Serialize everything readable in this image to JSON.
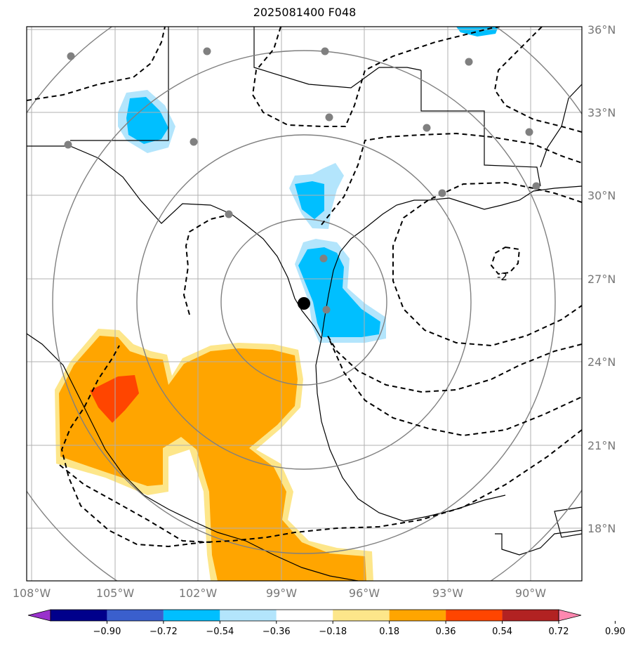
{
  "title": "2025081400 F048",
  "colors": {
    "frame": "#000000",
    "grid": "#aaaaaa",
    "range_rings": "#808080",
    "station_dot": "#808080",
    "center_dot": "#000000",
    "coast": "#000000",
    "contour_line": "#000000",
    "pos_0.18_0.36": "#fde68a",
    "pos_0.36_0.54": "#ffa500",
    "pos_0.54_0.72": "#ff4500",
    "neg_-0.36_-0.18": "#b3e5fc",
    "neg_-0.54_-0.36": "#00bfff"
  },
  "lat_labels": [
    "36°N",
    "33°N",
    "30°N",
    "27°N",
    "24°N",
    "21°N",
    "18°N"
  ],
  "lon_labels": [
    "108°W",
    "105°W",
    "102°W",
    "99°W",
    "96°W",
    "93°W",
    "90°W"
  ],
  "contour_label": "-2",
  "colorbar": {
    "ticks": [
      "−0.90",
      "−0.72",
      "−0.54",
      "−0.36",
      "−0.18",
      "0.18",
      "0.36",
      "0.54",
      "0.72",
      "0.90"
    ],
    "colors": [
      "#9932cc",
      "#00008b",
      "#3a5fcd",
      "#00bfff",
      "#b3e5fc",
      "#ffffff",
      "#fde68a",
      "#ffa500",
      "#ff4500",
      "#b22222",
      "#ff88b0"
    ]
  }
}
